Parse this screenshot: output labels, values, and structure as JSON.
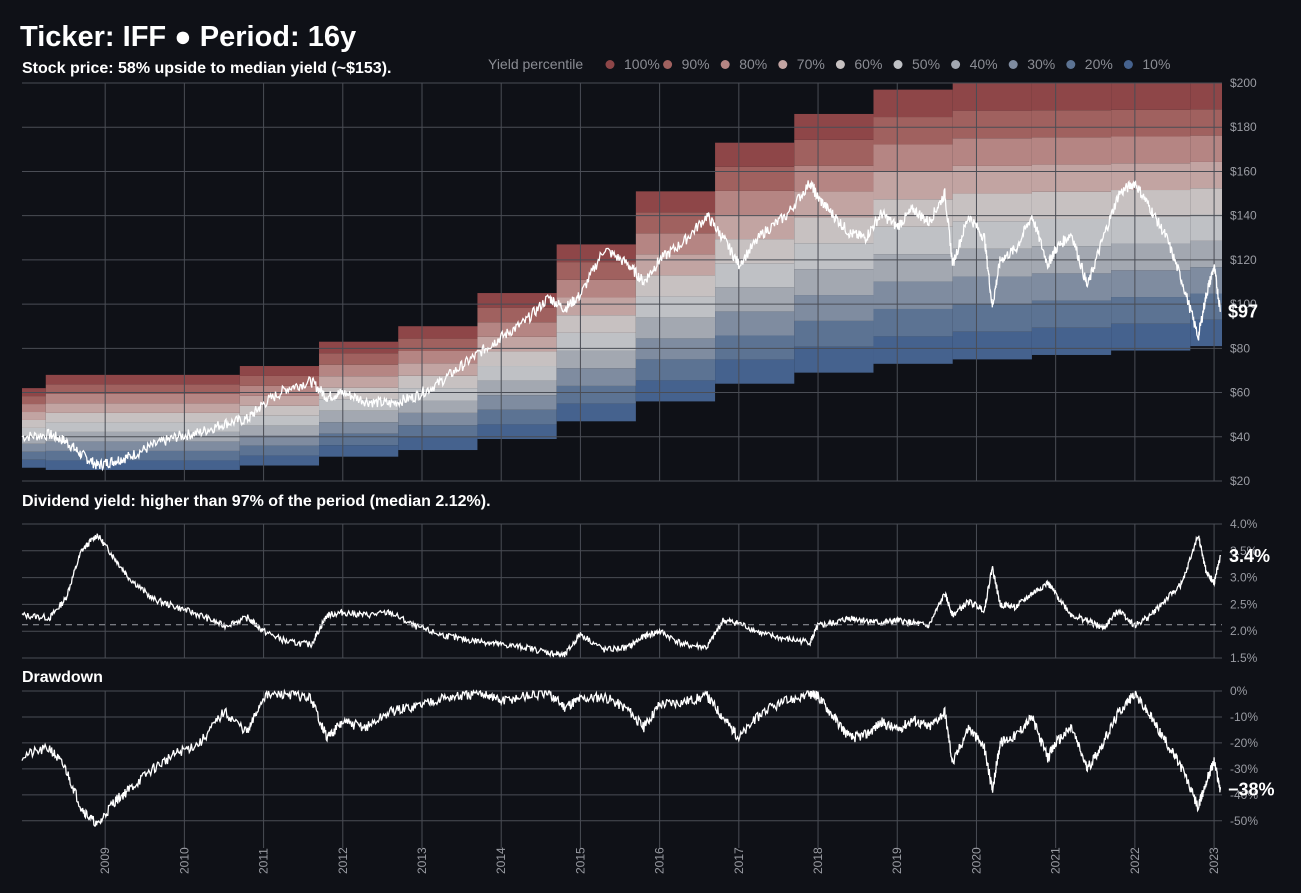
{
  "header": {
    "title": "Ticker: IFF  ●  Period: 16y",
    "price_subtitle": "Stock price:  58% upside to median yield (~$153).",
    "yield_subtitle": "Dividend yield: higher than 97% of the period (median 2.12%).",
    "drawdown_subtitle": "Drawdown"
  },
  "legend": {
    "title": "Yield percentile",
    "items": [
      {
        "label": "100%",
        "color": "#8e4648"
      },
      {
        "label": "90%",
        "color": "#a0615f"
      },
      {
        "label": "80%",
        "color": "#b58583"
      },
      {
        "label": "70%",
        "color": "#c2a4a2"
      },
      {
        "label": "60%",
        "color": "#c7c1c1"
      },
      {
        "label": "50%",
        "color": "#bfc1c5"
      },
      {
        "label": "40%",
        "color": "#a3a8b1"
      },
      {
        "label": "30%",
        "color": "#7f8ca0"
      },
      {
        "label": "20%",
        "color": "#5c7393"
      },
      {
        "label": "10%",
        "color": "#45628e"
      }
    ]
  },
  "chart_data": [
    {
      "type": "area",
      "name": "price",
      "ylabel_ticks": [
        "$200",
        "$180",
        "$160",
        "$140",
        "$120",
        "$100",
        "$80",
        "$60",
        "$40",
        "$20"
      ],
      "ylim": [
        20,
        200
      ],
      "current_value_label": "$97",
      "bands_by_year": [
        {
          "year_start": 2007.95,
          "year_end": 2008.25,
          "p10": 26,
          "p100": 62
        },
        {
          "year_start": 2008.25,
          "year_end": 2010.7,
          "p10": 25,
          "p100": 68
        },
        {
          "year_start": 2010.7,
          "year_end": 2011.7,
          "p10": 27,
          "p100": 72
        },
        {
          "year_start": 2011.7,
          "year_end": 2012.7,
          "p10": 31,
          "p100": 83
        },
        {
          "year_start": 2012.7,
          "year_end": 2013.7,
          "p10": 34,
          "p100": 90
        },
        {
          "year_start": 2013.7,
          "year_end": 2014.7,
          "p10": 39,
          "p100": 105
        },
        {
          "year_start": 2014.7,
          "year_end": 2015.7,
          "p10": 47,
          "p100": 127
        },
        {
          "year_start": 2015.7,
          "year_end": 2016.7,
          "p10": 56,
          "p100": 151
        },
        {
          "year_start": 2016.7,
          "year_end": 2017.7,
          "p10": 64,
          "p100": 173
        },
        {
          "year_start": 2017.7,
          "year_end": 2018.7,
          "p10": 69,
          "p100": 186
        },
        {
          "year_start": 2018.7,
          "year_end": 2019.7,
          "p10": 73,
          "p100": 197
        },
        {
          "year_start": 2019.7,
          "year_end": 2020.7,
          "p10": 75,
          "p100": 200
        },
        {
          "year_start": 2020.7,
          "year_end": 2021.7,
          "p10": 77,
          "p100": 200
        },
        {
          "year_start": 2021.7,
          "year_end": 2022.7,
          "p10": 79,
          "p100": 200
        },
        {
          "year_start": 2022.7,
          "year_end": 2023.1,
          "p10": 81,
          "p100": 200
        }
      ],
      "series": [
        {
          "x": [
            2007.95,
            2008.3,
            2008.5,
            2008.7,
            2008.9,
            2009.1,
            2009.3,
            2009.6,
            2009.9,
            2010.2,
            2010.5,
            2010.8,
            2011.0,
            2011.3,
            2011.6,
            2011.8,
            2012.0,
            2012.3,
            2012.6,
            2012.9,
            2013.2,
            2013.5,
            2013.8,
            2014.0,
            2014.3,
            2014.6,
            2014.8,
            2015.0,
            2015.3,
            2015.6,
            2015.8,
            2016.0,
            2016.3,
            2016.6,
            2016.8,
            2017.0,
            2017.3,
            2017.6,
            2017.9,
            2018.0,
            2018.2,
            2018.4,
            2018.6,
            2018.8,
            2019.0,
            2019.2,
            2019.4,
            2019.6,
            2019.7,
            2019.9,
            2020.1,
            2020.2,
            2020.3,
            2020.5,
            2020.7,
            2020.9,
            2021.0,
            2021.2,
            2021.4,
            2021.6,
            2021.8,
            2022.0,
            2022.2,
            2022.4,
            2022.6,
            2022.8,
            2022.9,
            2023.0,
            2023.08
          ],
          "values": [
            40,
            41,
            38,
            32,
            27,
            29,
            31,
            36,
            40,
            42,
            46,
            48,
            55,
            62,
            65,
            58,
            60,
            56,
            55,
            58,
            64,
            72,
            80,
            85,
            92,
            103,
            98,
            104,
            125,
            118,
            110,
            120,
            128,
            140,
            130,
            118,
            132,
            140,
            155,
            148,
            140,
            132,
            130,
            141,
            135,
            143,
            137,
            150,
            118,
            140,
            130,
            99,
            120,
            125,
            140,
            118,
            125,
            132,
            108,
            130,
            150,
            155,
            143,
            130,
            110,
            85,
            104,
            117,
            97
          ]
        }
      ]
    },
    {
      "type": "line",
      "name": "dividend_yield",
      "ylabel_ticks": [
        "4.0%",
        "3.5%",
        "3.0%",
        "2.5%",
        "2.0%",
        "1.5%"
      ],
      "ylim": [
        1.5,
        4.0
      ],
      "median": 2.12,
      "current_value_label": "3.4%",
      "series": [
        {
          "x": [
            2007.95,
            2008.3,
            2008.5,
            2008.7,
            2008.9,
            2009.1,
            2009.3,
            2009.6,
            2009.9,
            2010.2,
            2010.5,
            2010.8,
            2011.0,
            2011.3,
            2011.6,
            2011.8,
            2012.0,
            2012.3,
            2012.6,
            2012.9,
            2013.2,
            2013.5,
            2013.8,
            2014.0,
            2014.3,
            2014.6,
            2014.8,
            2015.0,
            2015.3,
            2015.6,
            2015.8,
            2016.0,
            2016.3,
            2016.6,
            2016.8,
            2017.0,
            2017.3,
            2017.6,
            2017.9,
            2018.0,
            2018.2,
            2018.4,
            2018.6,
            2018.8,
            2019.0,
            2019.2,
            2019.4,
            2019.6,
            2019.7,
            2019.9,
            2020.1,
            2020.2,
            2020.3,
            2020.5,
            2020.7,
            2020.9,
            2021.0,
            2021.2,
            2021.4,
            2021.6,
            2021.8,
            2022.0,
            2022.2,
            2022.4,
            2022.6,
            2022.8,
            2022.9,
            2023.0,
            2023.08
          ],
          "values": [
            2.3,
            2.25,
            2.6,
            3.5,
            3.8,
            3.4,
            3.0,
            2.6,
            2.45,
            2.3,
            2.1,
            2.25,
            2.0,
            1.8,
            1.75,
            2.3,
            2.35,
            2.3,
            2.35,
            2.1,
            1.95,
            1.85,
            1.8,
            1.75,
            1.7,
            1.6,
            1.55,
            1.95,
            1.65,
            1.7,
            1.9,
            2.0,
            1.75,
            1.7,
            2.2,
            2.15,
            1.95,
            1.85,
            1.8,
            2.1,
            2.15,
            2.25,
            2.2,
            2.15,
            2.2,
            2.15,
            2.1,
            2.7,
            2.3,
            2.55,
            2.4,
            3.2,
            2.5,
            2.45,
            2.7,
            2.9,
            2.7,
            2.3,
            2.2,
            2.05,
            2.4,
            2.1,
            2.3,
            2.6,
            2.9,
            3.8,
            3.1,
            2.9,
            3.4
          ]
        }
      ]
    },
    {
      "type": "line",
      "name": "drawdown",
      "ylabel_ticks": [
        "0%",
        "-10%",
        "-20%",
        "-30%",
        "-40%",
        "-50%"
      ],
      "ylim": [
        -52,
        0
      ],
      "current_value_label": "−38%",
      "series": [
        {
          "x": [
            2007.95,
            2008.3,
            2008.5,
            2008.7,
            2008.9,
            2009.1,
            2009.3,
            2009.6,
            2009.9,
            2010.2,
            2010.5,
            2010.8,
            2011.0,
            2011.3,
            2011.6,
            2011.8,
            2012.0,
            2012.3,
            2012.6,
            2012.9,
            2013.2,
            2013.5,
            2013.8,
            2014.0,
            2014.3,
            2014.6,
            2014.8,
            2015.0,
            2015.3,
            2015.6,
            2015.8,
            2016.0,
            2016.3,
            2016.6,
            2016.8,
            2017.0,
            2017.3,
            2017.6,
            2017.9,
            2018.0,
            2018.2,
            2018.4,
            2018.6,
            2018.8,
            2019.0,
            2019.2,
            2019.4,
            2019.6,
            2019.7,
            2019.9,
            2020.1,
            2020.2,
            2020.3,
            2020.5,
            2020.7,
            2020.9,
            2021.0,
            2021.2,
            2021.4,
            2021.6,
            2021.8,
            2022.0,
            2022.2,
            2022.4,
            2022.6,
            2022.8,
            2022.9,
            2023.0,
            2023.08
          ],
          "values": [
            -25,
            -22,
            -30,
            -45,
            -52,
            -43,
            -38,
            -30,
            -24,
            -20,
            -8,
            -16,
            -2,
            -1,
            -3,
            -18,
            -12,
            -14,
            -8,
            -6,
            -3,
            -2,
            -1,
            -4,
            -2,
            -1,
            -6,
            -3,
            -2,
            -7,
            -14,
            -5,
            -4,
            -2,
            -10,
            -18,
            -8,
            -4,
            -1,
            -2,
            -10,
            -18,
            -17,
            -12,
            -15,
            -11,
            -14,
            -8,
            -28,
            -14,
            -22,
            -38,
            -20,
            -17,
            -10,
            -26,
            -20,
            -14,
            -30,
            -20,
            -8,
            -1,
            -10,
            -20,
            -30,
            -45,
            -35,
            -27,
            -38
          ]
        }
      ]
    }
  ],
  "x_ticks": [
    "2009",
    "2010",
    "2011",
    "2012",
    "2013",
    "2014",
    "2015",
    "2016",
    "2017",
    "2018",
    "2019",
    "2020",
    "2021",
    "2022",
    "2023"
  ]
}
